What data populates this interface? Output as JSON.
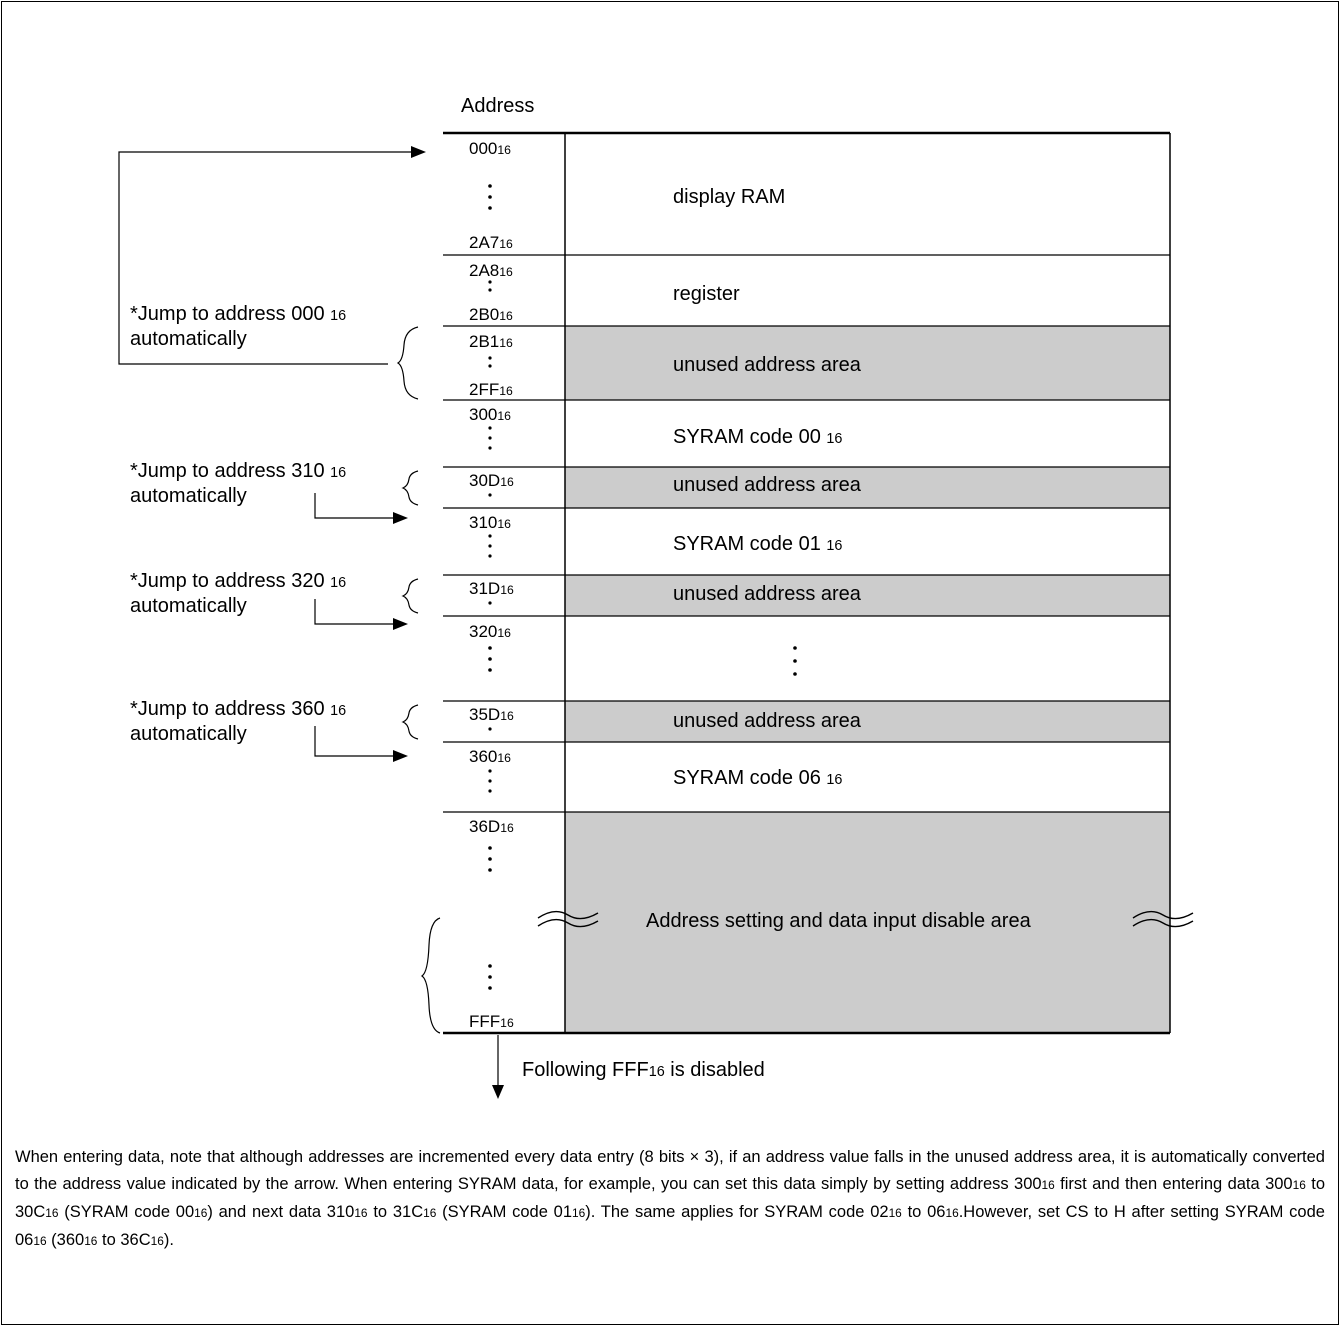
{
  "title": "Address",
  "addresses": [
    {
      "value": "000",
      "sub": "16"
    },
    {
      "value": "2A7",
      "sub": "16"
    },
    {
      "value": "2A8",
      "sub": "16"
    },
    {
      "value": "2B0",
      "sub": "16"
    },
    {
      "value": "2B1",
      "sub": "16"
    },
    {
      "value": "2FF",
      "sub": "16"
    },
    {
      "value": "300",
      "sub": "16"
    },
    {
      "value": "30D",
      "sub": "16"
    },
    {
      "value": "310",
      "sub": "16"
    },
    {
      "value": "31D",
      "sub": "16"
    },
    {
      "value": "320",
      "sub": "16"
    },
    {
      "value": "35D",
      "sub": "16"
    },
    {
      "value": "360",
      "sub": "16"
    },
    {
      "value": "36D",
      "sub": "16"
    },
    {
      "value": "FFF",
      "sub": "16"
    }
  ],
  "areas": {
    "display_ram": "display RAM",
    "register": "register",
    "unused": "unused address area",
    "syram0": {
      "text": "SYRAM code 00",
      "sub": "16"
    },
    "syram1": {
      "text": "SYRAM code 01",
      "sub": "16"
    },
    "syram6": {
      "text": "SYRAM code 06",
      "sub": "16"
    },
    "disable": "Address setting and data input disable area"
  },
  "notes": [
    {
      "line1": "*Jump to address 000",
      "sub": "16",
      "line2": "automatically"
    },
    {
      "line1": "*Jump to address 310",
      "sub": "16",
      "line2": "automatically"
    },
    {
      "line1": "*Jump to address 320",
      "sub": "16",
      "line2": "automatically"
    },
    {
      "line1": "*Jump to address 360",
      "sub": "16",
      "line2": "automatically"
    }
  ],
  "following": {
    "pre": "Following FFF",
    "sub": "16",
    "post": " is disabled"
  },
  "paragraph": {
    "p1": "When entering data, note that although addresses are incremented every data entry (8 bits ",
    "times": "×",
    "p2": " 3), if an address value falls in the unused address area, it is automatically converted to the address value indicated by the arrow. When entering SYRAM data, for example, you can set this data simply by setting address 300",
    "p3": " first and then entering data 300",
    "p4": " to 30C",
    "p5": " (SYRAM code 00",
    "p6": ") and next data 310",
    "p7": " to 31C",
    "p8": " (SYRAM code 01",
    "p9": "). The same applies for SYRAM code 02",
    "p10": " to 06",
    "p11": ".However, set CS to H after setting SYRAM code 06",
    "p12": " (360",
    "p13": " to 36C",
    "p14": ").",
    "sub": "16"
  }
}
